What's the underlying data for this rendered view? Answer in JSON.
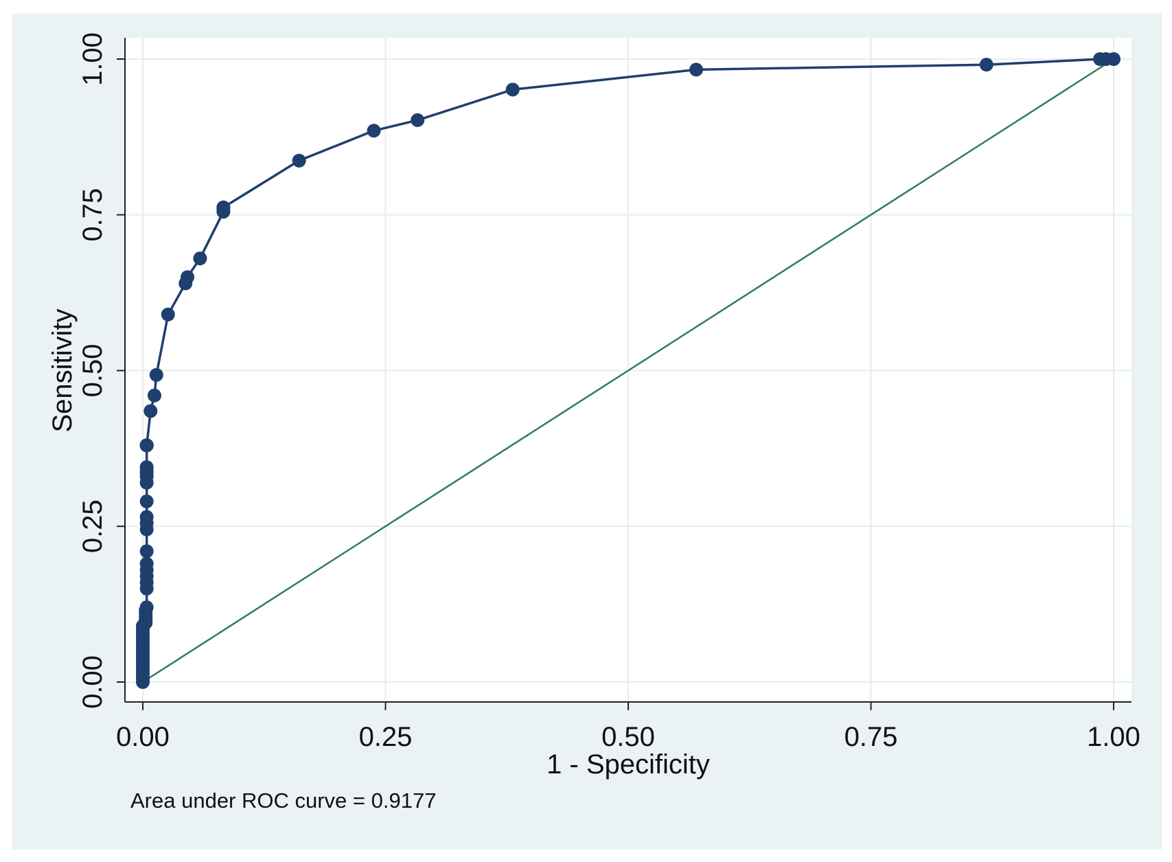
{
  "chart_data": {
    "type": "line",
    "title": "",
    "xlabel": "1 - Specificity",
    "ylabel": "Sensitivity",
    "xlim": [
      0,
      1
    ],
    "ylim": [
      0,
      1
    ],
    "x_ticks": [
      "0.00",
      "0.25",
      "0.50",
      "0.75",
      "1.00"
    ],
    "y_ticks": [
      "0.00",
      "0.25",
      "0.50",
      "0.75",
      "1.00"
    ],
    "grid": true,
    "note": "Area under ROC curve = 0.9177",
    "colors": {
      "roc": "#1f3f6e",
      "reference": "#2e7d5b",
      "background": "#eaf2f3",
      "plot_area": "#ffffff",
      "grid": "#e6ecee"
    },
    "series": [
      {
        "type": "line-markers",
        "x": [
          0.0,
          0.0,
          0.0,
          0.0,
          0.0,
          0.0,
          0.0,
          0.0,
          0.0,
          0.0,
          0.0,
          0.0,
          0.0,
          0.0,
          0.0,
          0.0,
          0.0,
          0.0,
          0.0,
          0.003,
          0.003,
          0.003,
          0.003,
          0.003,
          0.004,
          0.004,
          0.004,
          0.004,
          0.004,
          0.004,
          0.004,
          0.004,
          0.004,
          0.004,
          0.004,
          0.004,
          0.004,
          0.004,
          0.004,
          0.004,
          0.004,
          0.004,
          0.004,
          0.004,
          0.004,
          0.004,
          0.004,
          0.004,
          0.008,
          0.012,
          0.014,
          0.026,
          0.044,
          0.046,
          0.059,
          0.083,
          0.083,
          0.083,
          0.161,
          0.238,
          0.283,
          0.381,
          0.57,
          0.869,
          0.986,
          0.992,
          1.0
        ],
        "y": [
          0.0,
          0.005,
          0.01,
          0.015,
          0.02,
          0.025,
          0.03,
          0.035,
          0.04,
          0.045,
          0.05,
          0.055,
          0.06,
          0.065,
          0.07,
          0.075,
          0.08,
          0.085,
          0.09,
          0.095,
          0.1,
          0.105,
          0.11,
          0.115,
          0.12,
          0.15,
          0.16,
          0.17,
          0.18,
          0.19,
          0.21,
          0.245,
          0.255,
          0.265,
          0.29,
          0.32,
          0.33,
          0.335,
          0.34,
          0.345,
          0.38,
          0.38,
          0.38,
          0.38,
          0.38,
          0.38,
          0.38,
          0.38,
          0.435,
          0.46,
          0.493,
          0.59,
          0.64,
          0.65,
          0.68,
          0.755,
          0.76,
          0.762,
          0.837,
          0.885,
          0.902,
          0.951,
          0.983,
          0.991,
          1.0,
          1.0,
          1.0
        ]
      },
      {
        "type": "line",
        "x": [
          0,
          1
        ],
        "y": [
          0,
          1
        ]
      }
    ]
  }
}
